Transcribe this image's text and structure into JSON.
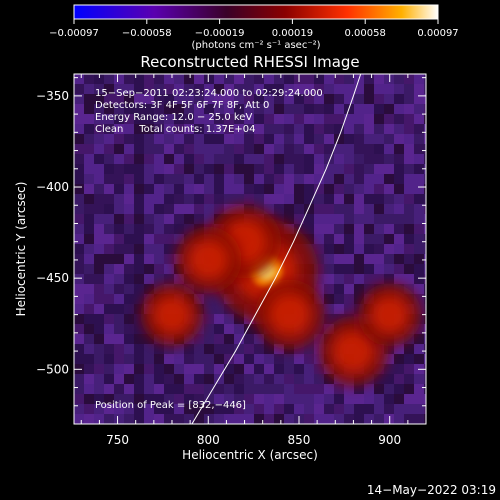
{
  "chart_data": {
    "type": "heatmap",
    "title": "Reconstructed RHESSI Image",
    "xlabel": "Heliocentric X (arcsec)",
    "ylabel": "Heliocentric Y (arcsec)",
    "xlim": [
      726,
      920
    ],
    "ylim": [
      -530,
      -338
    ],
    "x_ticks": [
      750,
      800,
      850,
      900
    ],
    "y_ticks": [
      -350,
      -400,
      -450,
      -500
    ],
    "x_tick_labels": [
      "750",
      "800",
      "850",
      "900"
    ],
    "y_tick_labels": [
      "−350",
      "−400",
      "−450",
      "−500"
    ],
    "colorbar": {
      "ticks": [
        "−0.00097",
        "−0.00058",
        "−0.00019",
        "0.00019",
        "0.00058",
        "0.00097"
      ],
      "unit_label": "(photons cm⁻² s⁻¹ asec⁻²)",
      "range": [
        -0.00097,
        0.00097
      ]
    },
    "annotations": [
      "15−Sep−2011 02:23:24.000 to 02:29:24.000",
      "Detectors: 3F 4F 5F 6F 7F 8F, Att 0",
      "Energy Range: 12.0 − 25.0 keV",
      "Clean     Total counts: 1.37E+04"
    ],
    "peak_text": "Position of Peak = [832,−446]",
    "peak_position": [
      832,
      -446
    ],
    "limb_points": [
      [
        791,
        -530
      ],
      [
        803,
        -510
      ],
      [
        815,
        -490
      ],
      [
        826,
        -470
      ],
      [
        837,
        -450
      ],
      [
        847,
        -430
      ],
      [
        856,
        -410
      ],
      [
        865,
        -390
      ],
      [
        873,
        -370
      ],
      [
        880,
        -350
      ],
      [
        884,
        -338
      ]
    ],
    "sources": [
      {
        "x": 832,
        "y": -446,
        "level": 1.0
      },
      {
        "x": 820,
        "y": -430,
        "level": 0.55
      },
      {
        "x": 800,
        "y": -440,
        "level": 0.45
      },
      {
        "x": 845,
        "y": -470,
        "level": 0.5
      },
      {
        "x": 880,
        "y": -490,
        "level": 0.5
      },
      {
        "x": 780,
        "y": -470,
        "level": 0.4
      },
      {
        "x": 900,
        "y": -470,
        "level": 0.4
      }
    ]
  },
  "footer": {
    "timestamp": "14−May−2022 03:19"
  }
}
